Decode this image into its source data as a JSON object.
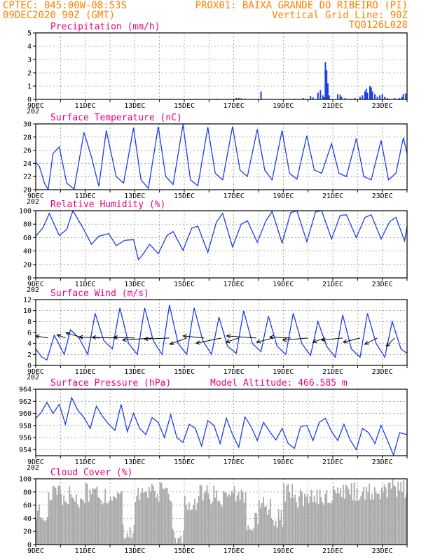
{
  "header": {
    "line1_left": "CPTEC:  045:00W-08:53S",
    "line1_right": "PROX01: BAIXA GRANDE DO RIBEIRO (PI)",
    "line2_left": "09DEC2020 90Z (GMT)",
    "line2_right": "Vertical Grid Line: 90Z",
    "line3_right": "TQ0126L028"
  },
  "colors": {
    "header": "#ff8000",
    "panel_title": "#e6007e",
    "line": "#1a3ee8",
    "cloud": "#a9a9a9"
  },
  "x_axis": {
    "labels": [
      "9DEC",
      "11DEC",
      "13DEC",
      "15DEC",
      "17DEC",
      "19DEC",
      "21DEC",
      "23DEC"
    ],
    "label_days": [
      0,
      2,
      4,
      6,
      8,
      10,
      12,
      14
    ],
    "range_days": [
      0,
      15
    ],
    "year_fragment": "202"
  },
  "chart_data": [
    {
      "type": "bar",
      "title": "Precipitation (mm/h)",
      "ylim": [
        0,
        5
      ],
      "yticks": [
        0,
        1,
        2,
        3,
        4,
        5
      ],
      "grid": true,
      "x_days": [
        0.8,
        1.5,
        2.8,
        3.6,
        5.2,
        6.0,
        7.3,
        8.0,
        8.1,
        8.2,
        8.3,
        8.45,
        9.1,
        10.45,
        10.8,
        11.1,
        11.2,
        11.4,
        11.5,
        11.6,
        11.65,
        11.7,
        11.75,
        11.8,
        11.85,
        12.2,
        12.3,
        12.35,
        12.5,
        12.7,
        12.9,
        13.1,
        13.2,
        13.3,
        13.35,
        13.4,
        13.5,
        13.55,
        13.6,
        13.7,
        13.8,
        13.9,
        14.0,
        14.1,
        14.2,
        14.3,
        14.5,
        14.65,
        14.7,
        14.8,
        14.85,
        14.95
      ],
      "values": [
        0.03,
        0.04,
        0.03,
        0.03,
        0.05,
        0.02,
        0.05,
        0.05,
        0.1,
        0.12,
        0.08,
        0.06,
        0.6,
        0.05,
        0.1,
        0.25,
        0.15,
        0.5,
        0.7,
        0.3,
        0.15,
        2.8,
        2.2,
        1.2,
        0.3,
        0.4,
        0.35,
        0.2,
        0.1,
        0.05,
        0.1,
        0.2,
        0.3,
        0.6,
        0.8,
        0.5,
        1.0,
        0.9,
        0.6,
        0.4,
        0.2,
        0.3,
        0.4,
        0.2,
        0.1,
        0.05,
        0.1,
        0.05,
        0.1,
        0.2,
        0.4,
        0.45
      ]
    },
    {
      "type": "line",
      "title": "Surface Temperature (nC)",
      "ylim": [
        20,
        30
      ],
      "yticks": [
        20,
        22,
        24,
        26,
        28,
        30
      ],
      "grid": true,
      "x_days": [
        0,
        0.15,
        0.35,
        0.5,
        0.7,
        0.95,
        1.25,
        1.55,
        1.95,
        2.25,
        2.55,
        2.85,
        3.25,
        3.55,
        3.95,
        4.25,
        4.55,
        4.95,
        5.25,
        5.55,
        5.95,
        6.25,
        6.55,
        6.95,
        7.25,
        7.55,
        7.95,
        8.25,
        8.55,
        8.95,
        9.25,
        9.55,
        9.95,
        10.25,
        10.55,
        10.95,
        11.25,
        11.55,
        11.95,
        12.25,
        12.55,
        12.95,
        13.25,
        13.55,
        13.95,
        14.25,
        14.55,
        14.85,
        15.0
      ],
      "values": [
        24.2,
        23.5,
        21.0,
        20.0,
        25.5,
        26.5,
        21.0,
        20.1,
        28.7,
        25.0,
        20.5,
        29.0,
        22.0,
        21.0,
        29.4,
        21.5,
        20.2,
        29.6,
        22.0,
        20.8,
        29.9,
        21.5,
        20.6,
        29.5,
        22.5,
        21.5,
        29.6,
        23.0,
        22.0,
        29.2,
        23.0,
        21.5,
        29.0,
        22.5,
        21.6,
        28.2,
        23.0,
        22.5,
        27.0,
        22.5,
        22.0,
        27.8,
        22.0,
        21.5,
        27.5,
        21.5,
        22.5,
        27.9,
        25.5
      ]
    },
    {
      "type": "line",
      "title": "Relative Humidity (%)",
      "ylim": [
        0,
        100
      ],
      "yticks": [
        0,
        20,
        40,
        60,
        80,
        100
      ],
      "grid": true,
      "x_days": [
        0,
        0.3,
        0.55,
        0.95,
        1.25,
        1.5,
        1.9,
        2.25,
        2.55,
        2.95,
        3.25,
        3.6,
        3.95,
        4.15,
        4.35,
        4.6,
        4.95,
        5.3,
        5.55,
        5.95,
        6.3,
        6.55,
        6.95,
        7.3,
        7.55,
        7.95,
        8.3,
        8.55,
        8.95,
        9.3,
        9.55,
        9.95,
        10.3,
        10.55,
        10.95,
        11.3,
        11.55,
        11.95,
        12.3,
        12.55,
        12.95,
        13.3,
        13.55,
        13.95,
        14.3,
        14.55,
        14.9,
        15.0
      ],
      "values": [
        62,
        75,
        96,
        63,
        72,
        100,
        75,
        50,
        62,
        66,
        48,
        56,
        57,
        27,
        36,
        50,
        36,
        63,
        69,
        41,
        74,
        77,
        38,
        83,
        96,
        46,
        80,
        85,
        53,
        85,
        99,
        52,
        97,
        100,
        54,
        98,
        100,
        58,
        93,
        94,
        60,
        90,
        94,
        58,
        84,
        90,
        55,
        77
      ]
    },
    {
      "type": "line",
      "title": "Surface Wind (m/s)",
      "ylim": [
        0,
        12
      ],
      "yticks": [
        0,
        2,
        4,
        6,
        8,
        10,
        12
      ],
      "grid": true,
      "x_days": [
        0,
        0.25,
        0.45,
        0.75,
        1.15,
        1.4,
        1.75,
        2.1,
        2.4,
        2.75,
        3.1,
        3.4,
        3.75,
        4.1,
        4.4,
        4.75,
        5.1,
        5.4,
        5.75,
        6.1,
        6.4,
        6.75,
        7.1,
        7.4,
        7.75,
        8.1,
        8.4,
        8.75,
        9.1,
        9.4,
        9.75,
        10.1,
        10.4,
        10.75,
        11.1,
        11.4,
        11.75,
        12.1,
        12.4,
        12.75,
        13.1,
        13.4,
        13.75,
        14.1,
        14.4,
        14.75,
        15.0
      ],
      "values": [
        3.0,
        1.5,
        1.0,
        5.5,
        2.0,
        6.5,
        5.0,
        2.0,
        9.5,
        4.5,
        3.0,
        10.5,
        4.0,
        2.0,
        10.5,
        4.5,
        2.0,
        11.0,
        4.0,
        2.0,
        10.5,
        4.5,
        2.0,
        8.8,
        3.5,
        2.2,
        10.0,
        4.0,
        2.5,
        9.0,
        3.5,
        2.0,
        9.5,
        4.0,
        1.8,
        8.0,
        3.5,
        1.5,
        9.2,
        3.0,
        1.5,
        9.5,
        4.0,
        1.5,
        8.0,
        3.0,
        2.2
      ],
      "vector_days": [
        0.5,
        1.2,
        1.9,
        2.6,
        3.3,
        4.0,
        4.7,
        5.4,
        6.1,
        6.8,
        7.5,
        8.2,
        8.9,
        9.6,
        10.3,
        11.0,
        11.7,
        12.4,
        13.1,
        13.8,
        14.5
      ],
      "vector_u": [
        -6,
        -4,
        -8,
        -10,
        -12,
        -10,
        -14,
        -12,
        -8,
        -10,
        -12,
        -6,
        -14,
        -8,
        -10,
        -12,
        -6,
        -10,
        -8,
        -6,
        -4
      ],
      "vector_v": [
        1,
        1.5,
        2.5,
        0.5,
        0.3,
        0.3,
        -1,
        -0.5,
        -3,
        1,
        -2.5,
        -2,
        1,
        -2,
        0.5,
        -1,
        -2,
        -1,
        -2,
        -3,
        -4
      ]
    },
    {
      "type": "line",
      "title": "Surface Pressure (hPa)",
      "annotation": "Model Altitude: 466.585 m",
      "ylim": [
        953,
        964
      ],
      "yticks": [
        954,
        956,
        958,
        960,
        962,
        964
      ],
      "grid": true,
      "x_days": [
        0,
        0.2,
        0.45,
        0.7,
        0.95,
        1.2,
        1.45,
        1.7,
        1.95,
        2.2,
        2.45,
        2.7,
        2.95,
        3.2,
        3.45,
        3.7,
        3.95,
        4.2,
        4.45,
        4.7,
        4.95,
        5.2,
        5.45,
        5.7,
        5.95,
        6.2,
        6.45,
        6.7,
        6.95,
        7.2,
        7.45,
        7.7,
        7.95,
        8.2,
        8.45,
        8.7,
        8.95,
        9.2,
        9.45,
        9.7,
        9.95,
        10.2,
        10.45,
        10.7,
        10.95,
        11.2,
        11.45,
        11.7,
        11.95,
        12.2,
        12.45,
        12.7,
        12.95,
        13.2,
        13.45,
        13.7,
        13.95,
        14.2,
        14.45,
        14.7,
        15.0
      ],
      "values": [
        959.2,
        960.0,
        961.8,
        960.0,
        961.5,
        958.2,
        962.6,
        960.5,
        959.3,
        957.5,
        961.2,
        959.5,
        958.2,
        957.2,
        961.5,
        957.0,
        960.0,
        957.5,
        956.5,
        959.3,
        958.5,
        956.0,
        959.8,
        956.0,
        955.2,
        958.2,
        957.5,
        954.6,
        958.8,
        958.0,
        955.0,
        959.2,
        956.5,
        954.4,
        959.4,
        957.8,
        955.5,
        958.5,
        957.0,
        955.6,
        957.5,
        955.0,
        954.2,
        957.8,
        958.0,
        955.5,
        958.5,
        959.2,
        957.0,
        955.5,
        958.2,
        955.6,
        954.0,
        957.5,
        956.8,
        955.0,
        958.0,
        955.6,
        953.1,
        956.8,
        956.5
      ]
    },
    {
      "type": "bar",
      "title": "Cloud Cover (%)",
      "ylim": [
        0,
        100
      ],
      "yticks": [
        0,
        20,
        40,
        60,
        80,
        100
      ],
      "grid": true,
      "x_days": [
        0.5,
        1.0,
        1.5,
        2.0,
        2.5,
        3.0,
        3.5,
        4.0,
        4.5,
        5.0,
        5.5,
        6.0,
        6.5,
        7.0,
        7.5,
        8.0,
        8.5,
        9.0,
        9.5,
        10.0,
        10.5,
        11.0,
        11.5,
        12.0,
        12.5,
        13.0,
        13.5,
        14.0,
        14.5,
        15.0
      ],
      "values": [
        60,
        85,
        85,
        80,
        90,
        85,
        82,
        30,
        85,
        88,
        90,
        20,
        70,
        88,
        85,
        80,
        88,
        45,
        70,
        50,
        90,
        80,
        82,
        85,
        88,
        90,
        90,
        92,
        95,
        95
      ]
    }
  ]
}
